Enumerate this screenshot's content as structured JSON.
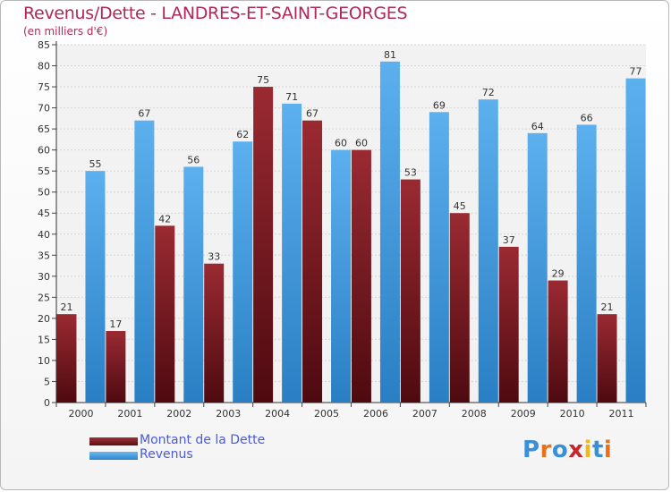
{
  "header": {
    "title": "Revenus/Dette - LANDRES-ET-SAINT-GEORGES",
    "subtitle": "(en milliers d'€)"
  },
  "logo": {
    "text": "Proxiti",
    "letters": [
      "P",
      "r",
      "o",
      "x",
      "i",
      "t",
      "i"
    ],
    "colors": [
      "#3a8fd6",
      "#e8721c",
      "#3a8fd6",
      "#c8262e",
      "#f0b81c",
      "#3a8fd6",
      "#e8721c"
    ]
  },
  "chart_data": {
    "type": "bar",
    "title": "Revenus/Dette - LANDRES-ET-SAINT-GEORGES",
    "subtitle": "(en milliers d'€)",
    "categories": [
      "2000",
      "2001",
      "2002",
      "2003",
      "2004",
      "2005",
      "2006",
      "2007",
      "2008",
      "2009",
      "2010",
      "2011"
    ],
    "series": [
      {
        "name": "Montant de la Dette",
        "color": "#7a1a22",
        "values": [
          21,
          17,
          42,
          33,
          75,
          67,
          60,
          53,
          45,
          37,
          29,
          21
        ]
      },
      {
        "name": "Revenus",
        "color": "#4a9fe0",
        "values": [
          55,
          67,
          56,
          62,
          71,
          60,
          81,
          69,
          72,
          64,
          66,
          77
        ]
      }
    ],
    "yticks": [
      0,
      5,
      10,
      15,
      20,
      25,
      30,
      35,
      40,
      45,
      50,
      55,
      60,
      65,
      70,
      75,
      80,
      85
    ],
    "ylim": [
      0,
      85
    ],
    "grid": true,
    "legend": "bottom-left"
  }
}
